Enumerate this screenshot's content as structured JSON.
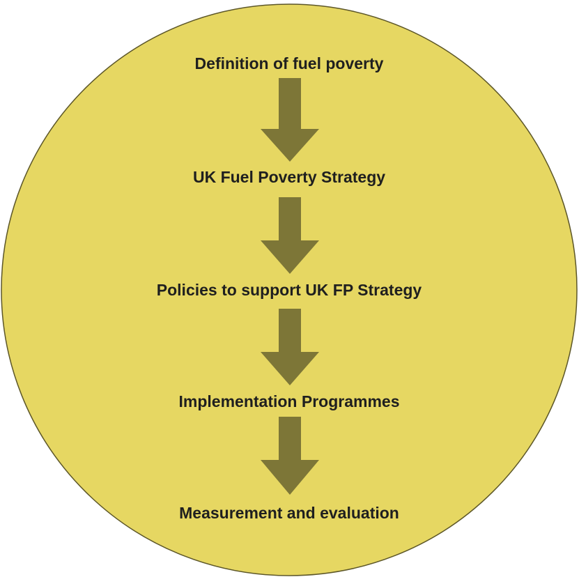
{
  "nodes": [
    {
      "label": "Definition of fuel poverty"
    },
    {
      "label": "UK Fuel Poverty Strategy"
    },
    {
      "label": "Policies to support UK FP Strategy"
    },
    {
      "label": "Implementation Programmes"
    },
    {
      "label": "Measurement and evaluation"
    }
  ]
}
